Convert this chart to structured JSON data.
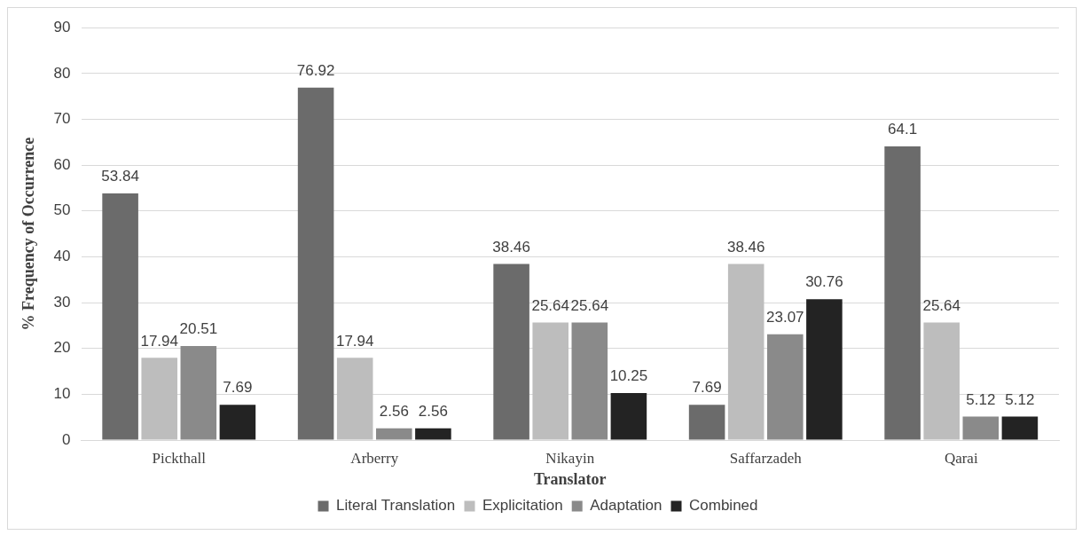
{
  "chart_data": {
    "type": "bar",
    "xlabel": "Translator",
    "ylabel": "% Frequency of Occurrence",
    "categories": [
      "Pickthall",
      "Arberry",
      "Nikayin",
      "Saffarzadeh",
      "Qarai"
    ],
    "series": [
      {
        "name": "Literal Translation",
        "color": "#6b6b6b",
        "values": [
          53.84,
          76.92,
          38.46,
          7.69,
          64.1
        ]
      },
      {
        "name": "Explicitation",
        "color": "#bdbdbd",
        "values": [
          17.94,
          17.94,
          25.64,
          38.46,
          25.64
        ]
      },
      {
        "name": "Adaptation",
        "color": "#8a8a8a",
        "values": [
          20.51,
          2.56,
          25.64,
          23.07,
          5.12
        ]
      },
      {
        "name": "Combined",
        "color": "#232323",
        "values": [
          7.69,
          2.56,
          10.25,
          30.76,
          5.12
        ]
      }
    ],
    "ylim": [
      0,
      90
    ],
    "yticks": [
      0,
      10,
      20,
      30,
      40,
      50,
      60,
      70,
      80,
      90
    ],
    "grid": "y",
    "legend": "bottom",
    "data_labels": true
  }
}
